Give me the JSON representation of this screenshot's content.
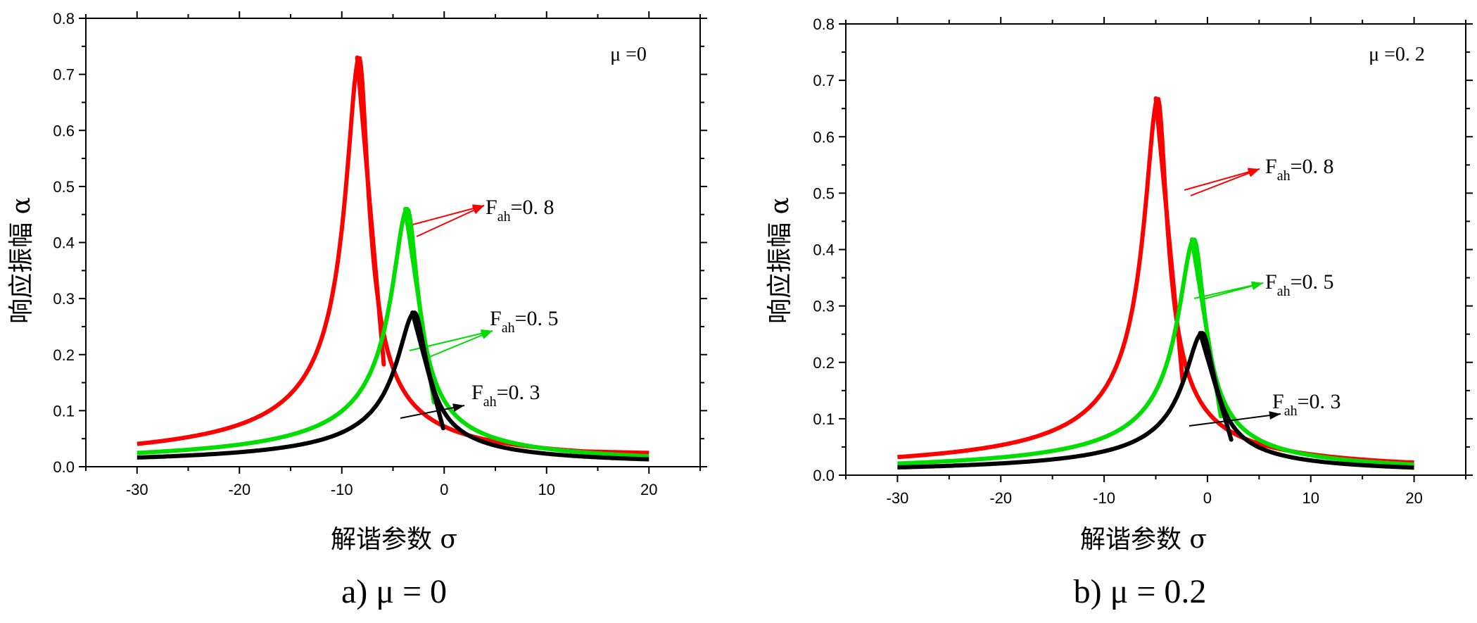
{
  "chart_data": [
    {
      "type": "line",
      "panel": "a",
      "caption": "a)  μ = 0",
      "annotation": "μ =0",
      "xlabel": "解谐参数 σ",
      "ylabel": "响应振幅 α",
      "xlim": [
        -35,
        25
      ],
      "ylim": [
        0,
        0.8
      ],
      "xticks": [
        "-30",
        "-20",
        "-10",
        "0",
        "10",
        "20"
      ],
      "yticks": [
        "0.0",
        "0.1",
        "0.2",
        "0.3",
        "0.4",
        "0.5",
        "0.6",
        "0.7",
        "0.8"
      ],
      "mu": 0,
      "series": [
        {
          "name": "F_ah=0.8",
          "label_main": "F",
          "label_sub": "ah",
          "label_value": "=0. 8",
          "color": "#ff0000",
          "peak_sigma": -8.3,
          "peak_amp": 0.73
        },
        {
          "name": "F_ah=0.5",
          "label_main": "F",
          "label_sub": "ah",
          "label_value": "=0. 5",
          "color": "#00dd00",
          "peak_sigma": -3.6,
          "peak_amp": 0.46
        },
        {
          "name": "F_ah=0.3",
          "label_main": "F",
          "label_sub": "ah",
          "label_value": "=0. 3",
          "color": "#000000",
          "peak_sigma": -2.9,
          "peak_amp": 0.275
        }
      ]
    },
    {
      "type": "line",
      "panel": "b",
      "caption": "b)  μ = 0.2",
      "annotation": "μ =0. 2",
      "xlabel": "解谐参数 σ",
      "ylabel": "响应振幅 α",
      "xlim": [
        -35,
        25
      ],
      "ylim": [
        0,
        0.8
      ],
      "xticks": [
        "-30",
        "-20",
        "-10",
        "0",
        "10",
        "20"
      ],
      "yticks": [
        "0.0",
        "0.1",
        "0.2",
        "0.3",
        "0.4",
        "0.5",
        "0.6",
        "0.7",
        "0.8"
      ],
      "mu": 0.2,
      "series": [
        {
          "name": "F_ah=0.8",
          "label_main": "F",
          "label_sub": "ah",
          "label_value": "=0. 8",
          "color": "#ff0000",
          "peak_sigma": -4.8,
          "peak_amp": 0.668
        },
        {
          "name": "F_ah=0.5",
          "label_main": "F",
          "label_sub": "ah",
          "label_value": "=0. 5",
          "color": "#00dd00",
          "peak_sigma": -1.3,
          "peak_amp": 0.418
        },
        {
          "name": "F_ah=0.3",
          "label_main": "F",
          "label_sub": "ah",
          "label_value": "=0. 3",
          "color": "#000000",
          "peak_sigma": -0.5,
          "peak_amp": 0.252
        }
      ]
    }
  ]
}
